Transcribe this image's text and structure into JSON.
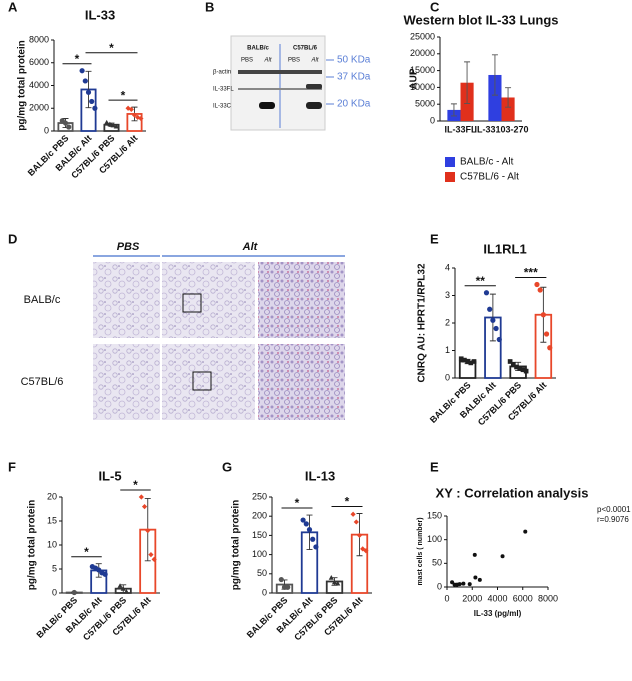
{
  "panel_labels": [
    "A",
    "B",
    "C",
    "D",
    "E",
    "F",
    "G",
    "E"
  ],
  "chart_data": [
    {
      "type": "bar",
      "title": "IL-33",
      "y_label": "pg/mg total protein",
      "categories": [
        "BALB/c  PBS",
        "BALB/c  Alt",
        "C57BL/6 PBS",
        "C57BL/6  Alt"
      ],
      "values": [
        700,
        3650,
        550,
        1500
      ],
      "errors": [
        400,
        1600,
        150,
        600
      ],
      "points": [
        [
          900,
          700,
          350
        ],
        [
          5300,
          4400,
          3400,
          2600,
          2000
        ],
        [
          750,
          600,
          500,
          400
        ],
        [
          2000,
          1900,
          1400,
          1200,
          1100
        ]
      ],
      "colors": [
        "#555555",
        "#1f3a93",
        "#333333",
        "#e8472a"
      ],
      "markers": [
        "circle",
        "circle",
        "triangle",
        "diamond"
      ],
      "ylim": [
        0,
        8000
      ],
      "yticks": [
        0,
        2000,
        4000,
        6000,
        8000
      ],
      "significance": [
        {
          "label": "*",
          "between": [
            "BALB/c  PBS",
            "BALB/c  Alt"
          ]
        },
        {
          "label": "*",
          "between": [
            "BALB/c  Alt",
            "C57BL/6  Alt"
          ]
        },
        {
          "label": "*",
          "between": [
            "C57BL/6 PBS",
            "C57BL/6  Alt"
          ]
        }
      ]
    },
    {
      "type": "grouped_bar",
      "title": "Western blot IL-33 Lungs",
      "y_label": "AUP",
      "categories": [
        "IL-33FL",
        "IL-33103-270"
      ],
      "series": [
        {
          "name": "BALB/c - Alt",
          "color": "#2f3fe0",
          "values": [
            3300,
            13700
          ],
          "errors": [
            1800,
            6000
          ]
        },
        {
          "name": "C57BL/6 - Alt",
          "color": "#e0301c",
          "values": [
            11400,
            7000
          ],
          "errors": [
            6200,
            2900
          ]
        }
      ],
      "ylim": [
        0,
        25000
      ],
      "yticks": [
        0,
        5000,
        10000,
        15000,
        20000,
        25000
      ]
    },
    {
      "type": "bar",
      "title": "IL1RL1",
      "y_label": "CNRQ AU: HPRT1/RPL32",
      "categories": [
        "BALB/c PBS",
        "BALB/c Alt",
        "C57BL/6 PBS",
        "C57BL/6 Alt"
      ],
      "values": [
        0.6,
        2.2,
        0.42,
        2.3
      ],
      "errors": [
        0.08,
        0.85,
        0.15,
        1.0
      ],
      "points": [
        [
          0.7,
          0.65,
          0.6,
          0.55,
          0.6
        ],
        [
          3.1,
          2.5,
          2.1,
          1.8,
          1.4
        ],
        [
          0.6,
          0.5,
          0.4,
          0.35,
          0.3,
          0.25
        ],
        [
          3.4,
          3.2,
          2.3,
          1.6,
          1.1
        ]
      ],
      "colors": [
        "#222222",
        "#1f3a93",
        "#222222",
        "#e8472a"
      ],
      "markers": [
        "square",
        "circle",
        "square",
        "circle"
      ],
      "ylim": [
        0,
        4
      ],
      "yticks": [
        0,
        1,
        2,
        3,
        4
      ],
      "significance": [
        {
          "label": "**",
          "between": [
            "BALB/c PBS",
            "BALB/c Alt"
          ]
        },
        {
          "label": "***",
          "between": [
            "C57BL/6 PBS",
            "C57BL/6 Alt"
          ]
        }
      ]
    },
    {
      "type": "bar",
      "title": "IL-5",
      "y_label": "pg/mg total protein",
      "categories": [
        "BALB/c  PBS",
        "BALB/c  Alt",
        "C57BL/6 PBS",
        "C57BL/6  Alt"
      ],
      "values": [
        0.1,
        4.7,
        0.9,
        13.2
      ],
      "errors": [
        0.1,
        1.4,
        0.8,
        6.5
      ],
      "points": [
        [
          0.1
        ],
        [
          5.5,
          5.2,
          4.8,
          4.2,
          3.9
        ],
        [
          1.5,
          0.9,
          0.3
        ],
        [
          20,
          18,
          13,
          8,
          7
        ]
      ],
      "colors": [
        "#555555",
        "#1f3a93",
        "#333333",
        "#e8472a"
      ],
      "markers": [
        "circle",
        "circle",
        "triangle",
        "diamond"
      ],
      "ylim": [
        0,
        20
      ],
      "yticks": [
        0,
        5,
        10,
        15,
        20
      ],
      "significance": [
        {
          "label": "*",
          "between": [
            "BALB/c  PBS",
            "BALB/c  Alt"
          ]
        },
        {
          "label": "*",
          "between": [
            "C57BL/6 PBS",
            "C57BL/6  Alt"
          ]
        }
      ]
    },
    {
      "type": "bar",
      "title": "IL-13",
      "y_label": "pg/mg total protein",
      "categories": [
        "BALB/c  PBS",
        "BALB/c  Alt",
        "C57BL/6 PBS",
        "C57BL/6  Alt"
      ],
      "values": [
        22,
        158,
        30,
        152
      ],
      "errors": [
        12,
        45,
        10,
        55
      ],
      "points": [
        [
          35,
          15,
          15
        ],
        [
          190,
          180,
          165,
          140,
          120
        ],
        [
          40,
          28,
          25
        ],
        [
          205,
          185,
          150,
          115,
          110
        ]
      ],
      "colors": [
        "#555555",
        "#1f3a93",
        "#333333",
        "#e8472a"
      ],
      "markers": [
        "circle",
        "circle",
        "triangle",
        "diamond"
      ],
      "ylim": [
        0,
        250
      ],
      "yticks": [
        0,
        50,
        100,
        150,
        200,
        250
      ],
      "significance": [
        {
          "label": "*",
          "between": [
            "BALB/c  PBS",
            "BALB/c  Alt"
          ]
        },
        {
          "label": "*",
          "between": [
            "C57BL/6 PBS",
            "C57BL/6  Alt"
          ]
        }
      ]
    },
    {
      "type": "scatter",
      "title": "XY : Correlation analysis",
      "x_label": "IL-33 (pg/ml)",
      "y_label": "mast cells ( number)",
      "x": [
        400,
        600,
        800,
        1000,
        1300,
        1800,
        2200,
        2250,
        2600,
        4400,
        6200
      ],
      "y": [
        10,
        5,
        5,
        6,
        7,
        6,
        68,
        20,
        15,
        65,
        117
      ],
      "xlim": [
        0,
        8000
      ],
      "xticks": [
        0,
        2000,
        4000,
        6000,
        8000
      ],
      "ylim": [
        0,
        150
      ],
      "yticks": [
        0,
        50,
        100,
        150
      ],
      "annotations": [
        "p<0.0001",
        "r=0.9076"
      ]
    }
  ],
  "blot": {
    "strains": [
      "BALB/c",
      "C57BL/6"
    ],
    "lanes": [
      "PBS",
      "Alt",
      "PBS",
      "Alt"
    ],
    "rows": [
      "β-actin",
      "IL-33FL",
      "IL-33C"
    ],
    "sizes": [
      "50 KDa",
      "37 KDa",
      "20 KDa"
    ]
  },
  "histology": {
    "columns": [
      "PBS",
      "Alt"
    ],
    "rows": [
      "BALB/c",
      "C57BL/6"
    ]
  }
}
